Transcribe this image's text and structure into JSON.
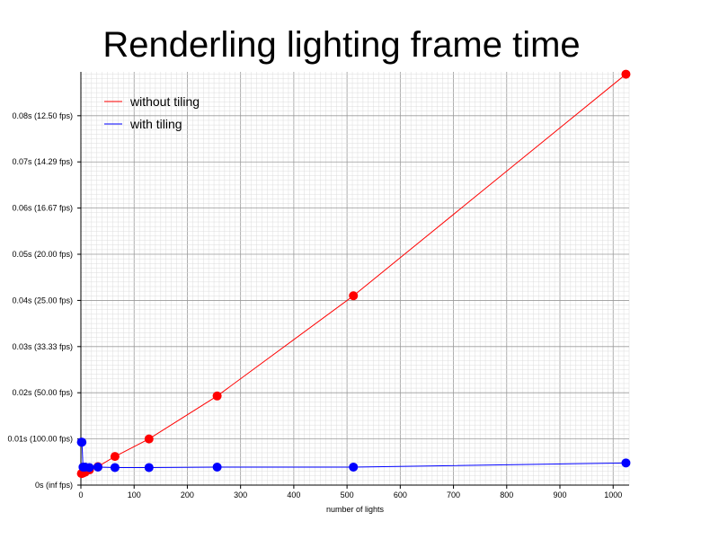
{
  "chart_data": {
    "type": "line",
    "title": "Renderling lighting frame time",
    "xlabel": "number of lights",
    "ylabel": "",
    "xlim": [
      0,
      1030
    ],
    "ylim": [
      0,
      0.0895
    ],
    "x_ticks": [
      0,
      100,
      200,
      300,
      400,
      500,
      600,
      700,
      800,
      900,
      1000
    ],
    "y_ticks": [
      {
        "value": 0,
        "label": "0s (inf fps)"
      },
      {
        "value": 0.01,
        "label": "0.01s (100.00 fps)"
      },
      {
        "value": 0.02,
        "label": "0.02s (50.00 fps)"
      },
      {
        "value": 0.03,
        "label": "0.03s (33.33 fps)"
      },
      {
        "value": 0.04,
        "label": "0.04s (25.00 fps)"
      },
      {
        "value": 0.05,
        "label": "0.05s (20.00 fps)"
      },
      {
        "value": 0.06,
        "label": "0.06s (16.67 fps)"
      },
      {
        "value": 0.07,
        "label": "0.07s (14.29 fps)"
      },
      {
        "value": 0.08,
        "label": "0.08s (12.50 fps)"
      }
    ],
    "grid": true,
    "legend_position": "top-left",
    "series": [
      {
        "name": "without tiling",
        "color": "#ff0000",
        "x": [
          1,
          2,
          4,
          8,
          16,
          32,
          64,
          128,
          256,
          512,
          1024
        ],
        "y": [
          0.0025,
          0.0025,
          0.0026,
          0.0028,
          0.0033,
          0.004,
          0.0062,
          0.01,
          0.0193,
          0.041,
          0.089
        ]
      },
      {
        "name": "with tiling",
        "color": "#0000ff",
        "x": [
          1,
          2,
          4,
          8,
          16,
          32,
          64,
          128,
          256,
          512,
          1024
        ],
        "y": [
          0.0093,
          0.0093,
          0.0039,
          0.0039,
          0.0038,
          0.0039,
          0.0038,
          0.0038,
          0.0039,
          0.0039,
          0.0048
        ]
      }
    ]
  }
}
